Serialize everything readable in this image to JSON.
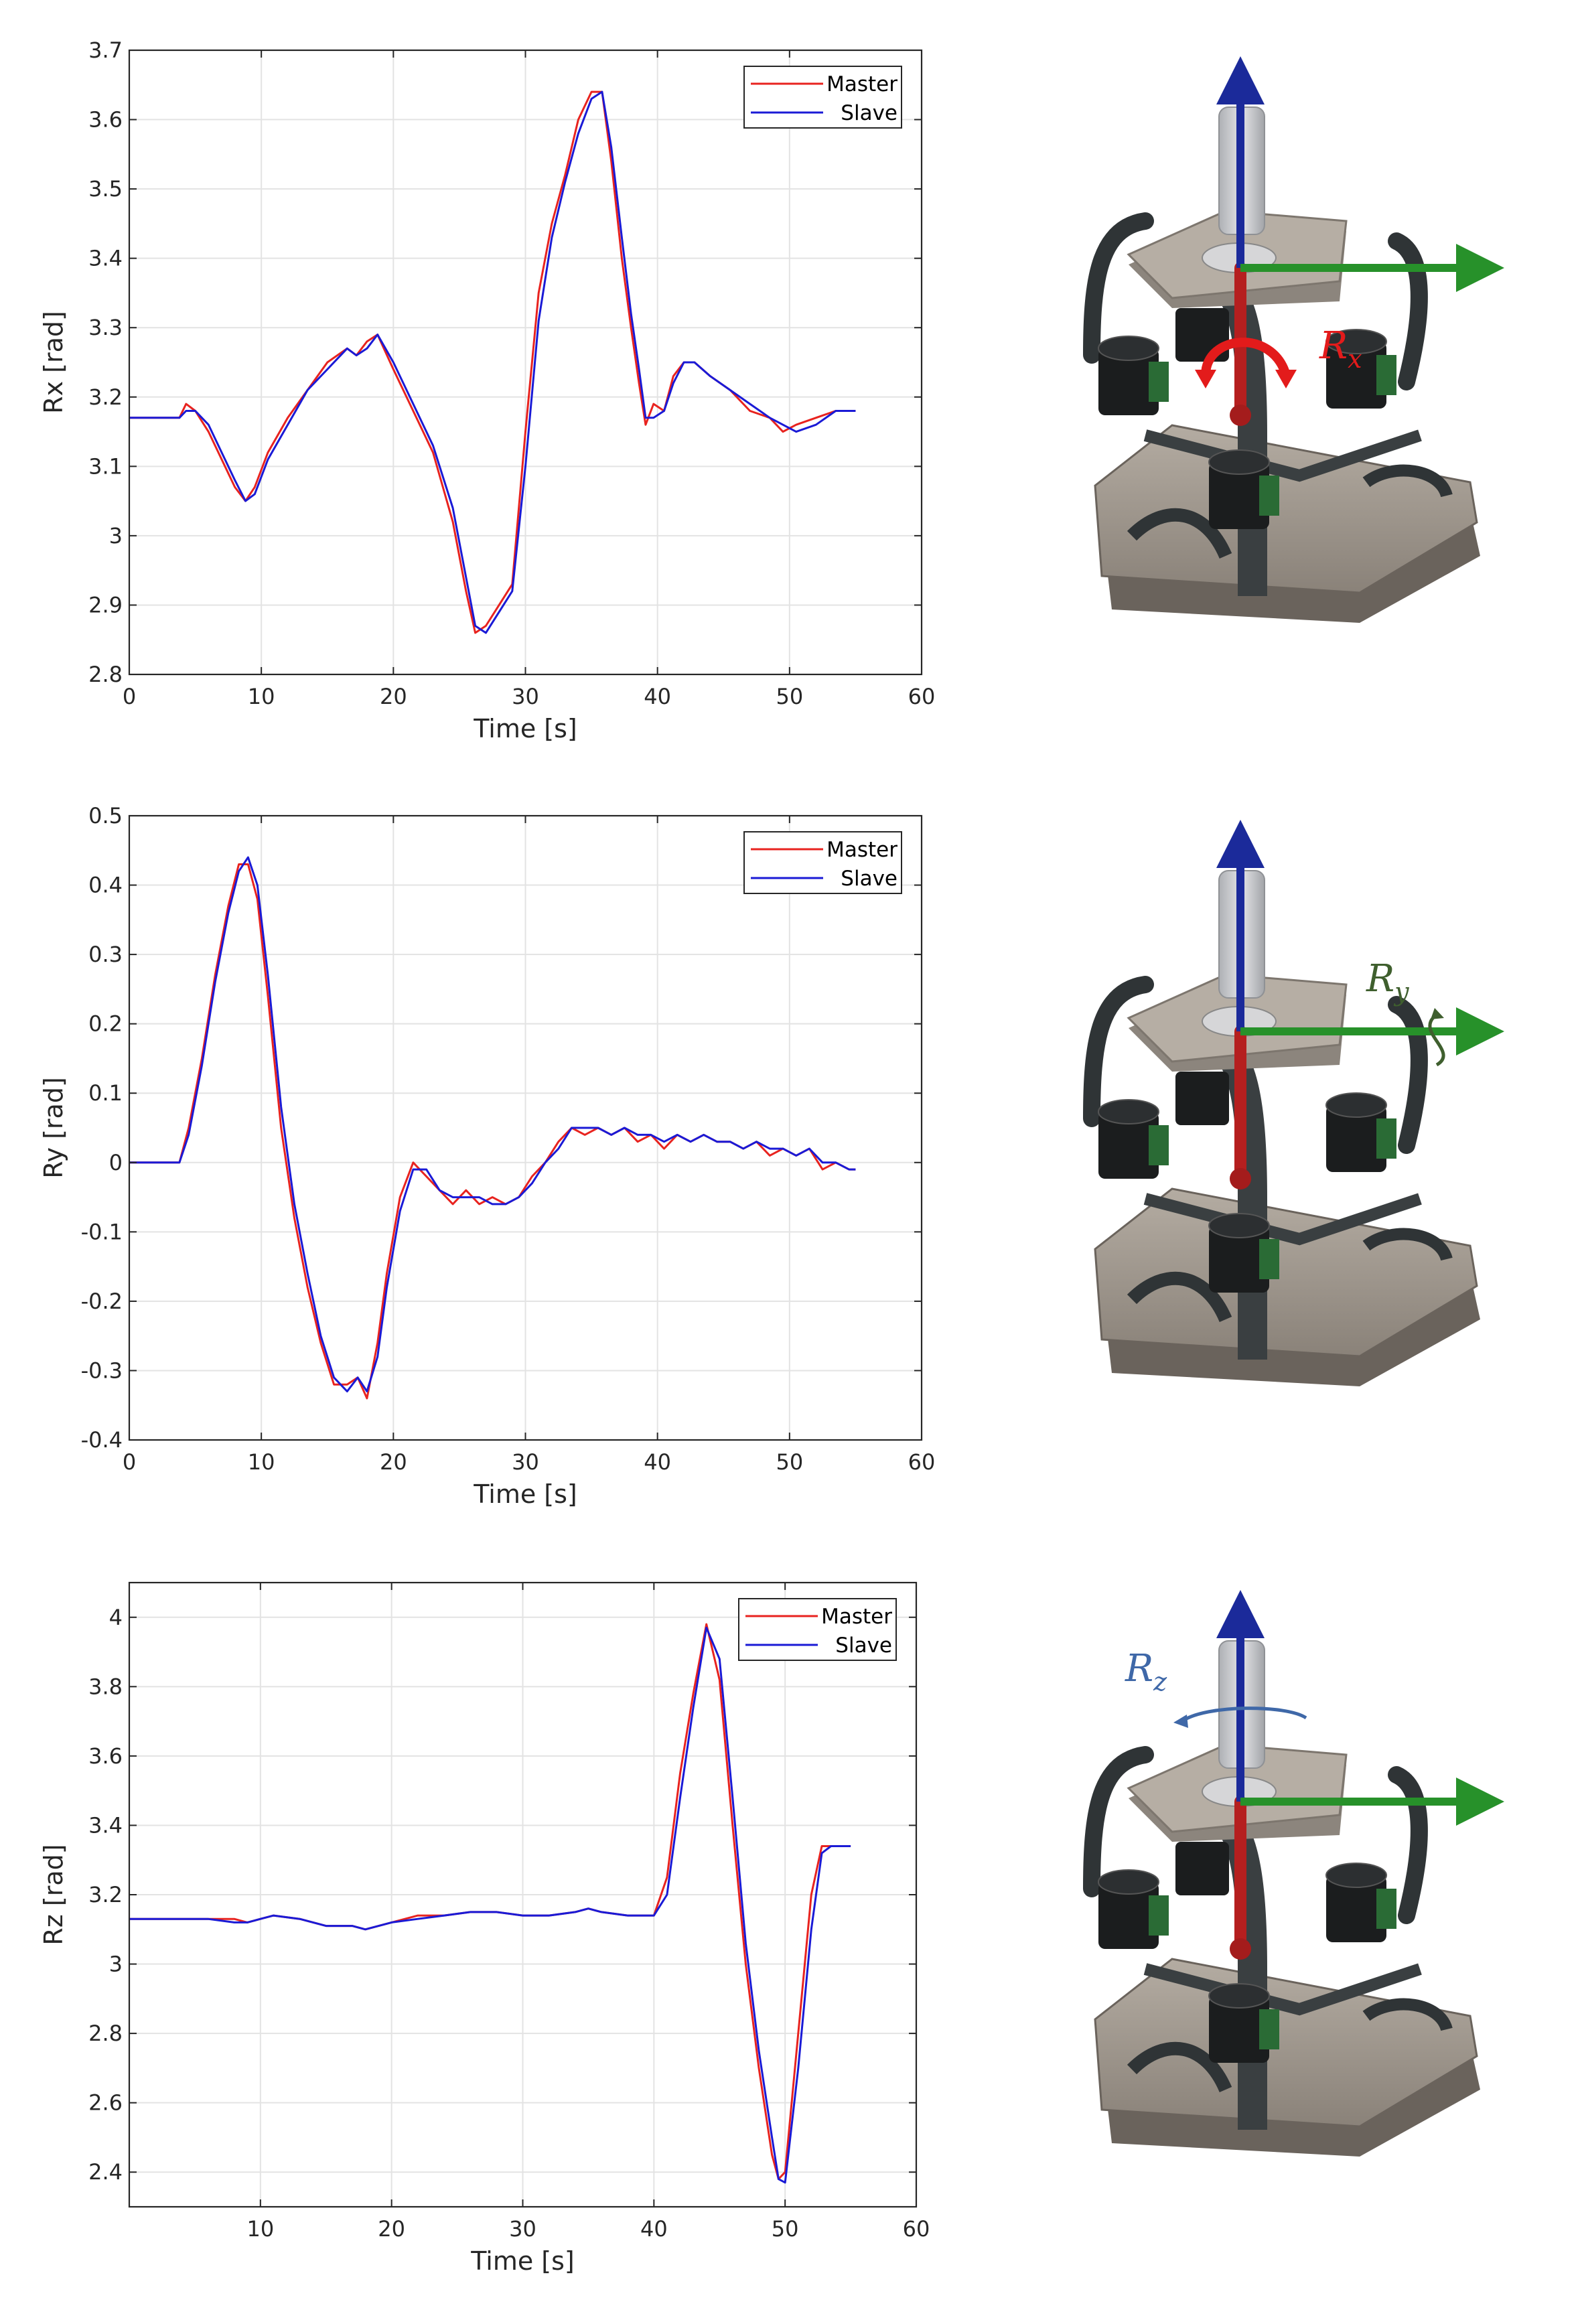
{
  "legend_labels": [
    "Master",
    "Slave"
  ],
  "colors": {
    "master": "#e8231f",
    "slave": "#1a1ad6",
    "x_axis_arrow": "#27912a",
    "z_axis_arrow": "#1b2a9a",
    "y_axis_arrow": "#b51f1f"
  },
  "chart_data": [
    {
      "type": "line",
      "xlabel": "Time [s]",
      "ylabel": "Rx [rad]",
      "xlim": [
        0,
        60
      ],
      "ylim": [
        2.8,
        3.7
      ],
      "xticks": [
        0,
        10,
        20,
        30,
        40,
        50,
        60
      ],
      "yticks": [
        2.8,
        2.9,
        3,
        3.1,
        3.2,
        3.3,
        3.4,
        3.5,
        3.6,
        3.7
      ],
      "grid": true,
      "legend": "top-right",
      "series": [
        {
          "name": "Master",
          "x": [
            0,
            3.8,
            4.3,
            5,
            6,
            7,
            8,
            8.8,
            9.5,
            10.5,
            12,
            13.5,
            15,
            16.5,
            17.2,
            18,
            18.8,
            20,
            21.5,
            23,
            24.5,
            25.5,
            26.2,
            27,
            28,
            29,
            30,
            31,
            32,
            33,
            34,
            35,
            35.8,
            36.5,
            37.3,
            38,
            38.6,
            39.1,
            39.7,
            40.5,
            41.2,
            42,
            42.8,
            44,
            45.5,
            47,
            48.5,
            49.5,
            50.5,
            52,
            53.5,
            55
          ],
          "y": [
            3.17,
            3.17,
            3.19,
            3.18,
            3.15,
            3.11,
            3.07,
            3.05,
            3.07,
            3.12,
            3.17,
            3.21,
            3.25,
            3.27,
            3.26,
            3.28,
            3.29,
            3.24,
            3.18,
            3.12,
            3.02,
            2.92,
            2.86,
            2.87,
            2.9,
            2.93,
            3.15,
            3.35,
            3.45,
            3.52,
            3.6,
            3.64,
            3.64,
            3.54,
            3.4,
            3.3,
            3.22,
            3.16,
            3.19,
            3.18,
            3.23,
            3.25,
            3.25,
            3.23,
            3.21,
            3.18,
            3.17,
            3.15,
            3.16,
            3.17,
            3.18,
            3.18
          ]
        },
        {
          "name": "Slave",
          "x": [
            0,
            3.8,
            4.3,
            5,
            6,
            7,
            8,
            8.8,
            9.5,
            10.5,
            12,
            13.5,
            15,
            16.5,
            17.2,
            18,
            18.8,
            20,
            21.5,
            23,
            24.5,
            25.5,
            26.2,
            27,
            28,
            29,
            30,
            31,
            32,
            33,
            34,
            35,
            35.8,
            36.5,
            37.3,
            38,
            38.6,
            39.1,
            39.7,
            40.5,
            41.2,
            42,
            42.8,
            44,
            45.5,
            47,
            48.5,
            49.5,
            50.5,
            52,
            53.5,
            55
          ],
          "y": [
            3.17,
            3.17,
            3.18,
            3.18,
            3.16,
            3.12,
            3.08,
            3.05,
            3.06,
            3.11,
            3.16,
            3.21,
            3.24,
            3.27,
            3.26,
            3.27,
            3.29,
            3.25,
            3.19,
            3.13,
            3.04,
            2.94,
            2.87,
            2.86,
            2.89,
            2.92,
            3.1,
            3.31,
            3.43,
            3.51,
            3.58,
            3.63,
            3.64,
            3.56,
            3.43,
            3.32,
            3.24,
            3.17,
            3.17,
            3.18,
            3.22,
            3.25,
            3.25,
            3.23,
            3.21,
            3.19,
            3.17,
            3.16,
            3.15,
            3.16,
            3.18,
            3.18
          ]
        }
      ]
    },
    {
      "type": "line",
      "xlabel": "Time [s]",
      "ylabel": "Ry [rad]",
      "xlim": [
        0,
        60
      ],
      "ylim": [
        -0.4,
        0.5
      ],
      "xticks": [
        0,
        10,
        20,
        30,
        40,
        50,
        60
      ],
      "yticks": [
        -0.4,
        -0.3,
        -0.2,
        -0.1,
        0,
        0.1,
        0.2,
        0.3,
        0.4,
        0.5
      ],
      "grid": true,
      "legend": "top-right",
      "series": [
        {
          "name": "Master",
          "x": [
            0,
            3.8,
            4.5,
            5.5,
            6.5,
            7.5,
            8.3,
            9,
            9.7,
            10.5,
            11.5,
            12.5,
            13.5,
            14.5,
            15.5,
            16.5,
            17.3,
            18,
            18.8,
            19.5,
            20.5,
            21.5,
            22.5,
            23.5,
            24.5,
            25.5,
            26.5,
            27.5,
            28.5,
            29.5,
            30.5,
            31.5,
            32.5,
            33.5,
            34.5,
            35.5,
            36.5,
            37.5,
            38.5,
            39.5,
            40.5,
            41.5,
            42.5,
            43.5,
            44.5,
            45.5,
            46.5,
            47.5,
            48.5,
            49.5,
            50.5,
            51.5,
            52.5,
            53.5,
            54.5,
            55
          ],
          "y": [
            0,
            0,
            0.05,
            0.15,
            0.27,
            0.37,
            0.43,
            0.43,
            0.38,
            0.24,
            0.05,
            -0.08,
            -0.18,
            -0.26,
            -0.32,
            -0.32,
            -0.31,
            -0.34,
            -0.26,
            -0.16,
            -0.05,
            0,
            -0.02,
            -0.04,
            -0.06,
            -0.04,
            -0.06,
            -0.05,
            -0.06,
            -0.05,
            -0.02,
            0,
            0.03,
            0.05,
            0.04,
            0.05,
            0.04,
            0.05,
            0.03,
            0.04,
            0.02,
            0.04,
            0.03,
            0.04,
            0.03,
            0.03,
            0.02,
            0.03,
            0.01,
            0.02,
            0.01,
            0.02,
            -0.01,
            0,
            -0.01,
            -0.01
          ]
        },
        {
          "name": "Slave",
          "x": [
            0,
            3.8,
            4.5,
            5.5,
            6.5,
            7.5,
            8.3,
            9,
            9.7,
            10.5,
            11.5,
            12.5,
            13.5,
            14.5,
            15.5,
            16.5,
            17.3,
            18,
            18.8,
            19.5,
            20.5,
            21.5,
            22.5,
            23.5,
            24.5,
            25.5,
            26.5,
            27.5,
            28.5,
            29.5,
            30.5,
            31.5,
            32.5,
            33.5,
            34.5,
            35.5,
            36.5,
            37.5,
            38.5,
            39.5,
            40.5,
            41.5,
            42.5,
            43.5,
            44.5,
            45.5,
            46.5,
            47.5,
            48.5,
            49.5,
            50.5,
            51.5,
            52.5,
            53.5,
            54.5,
            55
          ],
          "y": [
            0,
            0,
            0.04,
            0.14,
            0.26,
            0.36,
            0.42,
            0.44,
            0.4,
            0.27,
            0.08,
            -0.06,
            -0.16,
            -0.25,
            -0.31,
            -0.33,
            -0.31,
            -0.33,
            -0.28,
            -0.18,
            -0.07,
            -0.01,
            -0.01,
            -0.04,
            -0.05,
            -0.05,
            -0.05,
            -0.06,
            -0.06,
            -0.05,
            -0.03,
            0,
            0.02,
            0.05,
            0.05,
            0.05,
            0.04,
            0.05,
            0.04,
            0.04,
            0.03,
            0.04,
            0.03,
            0.04,
            0.03,
            0.03,
            0.02,
            0.03,
            0.02,
            0.02,
            0.01,
            0.02,
            0,
            0,
            -0.01,
            -0.01
          ]
        }
      ]
    },
    {
      "type": "line",
      "xlabel": "Time [s]",
      "ylabel": "Rz [rad]",
      "xlim": [
        0,
        60
      ],
      "ylim": [
        2.3,
        4.1
      ],
      "xticks": [
        10,
        20,
        30,
        40,
        50,
        60
      ],
      "yticks": [
        2.4,
        2.6,
        2.8,
        3,
        3.2,
        3.4,
        3.6,
        3.8,
        4
      ],
      "grid": true,
      "legend": "top-right",
      "series": [
        {
          "name": "Master",
          "x": [
            0,
            4,
            6,
            8,
            9,
            10,
            11,
            13,
            15,
            17,
            18,
            20,
            22,
            24,
            26,
            28,
            30,
            32,
            34,
            35,
            36,
            38,
            40,
            41,
            42,
            43,
            44,
            45,
            46,
            47,
            48,
            49,
            49.5,
            50,
            51,
            52,
            52.8,
            53.5,
            55
          ],
          "y": [
            3.13,
            3.13,
            3.13,
            3.13,
            3.12,
            3.13,
            3.14,
            3.13,
            3.11,
            3.11,
            3.1,
            3.12,
            3.14,
            3.14,
            3.15,
            3.15,
            3.14,
            3.14,
            3.15,
            3.16,
            3.15,
            3.14,
            3.14,
            3.25,
            3.55,
            3.78,
            3.98,
            3.82,
            3.4,
            3.0,
            2.7,
            2.45,
            2.38,
            2.4,
            2.8,
            3.2,
            3.34,
            3.34,
            3.34
          ]
        },
        {
          "name": "Slave",
          "x": [
            0,
            4,
            6,
            8,
            9,
            10,
            11,
            13,
            15,
            17,
            18,
            20,
            22,
            24,
            26,
            28,
            30,
            32,
            34,
            35,
            36,
            38,
            40,
            41,
            42,
            43,
            44,
            45,
            46,
            47,
            48,
            49,
            49.5,
            50,
            51,
            52,
            52.8,
            53.5,
            55
          ],
          "y": [
            3.13,
            3.13,
            3.13,
            3.12,
            3.12,
            3.13,
            3.14,
            3.13,
            3.11,
            3.11,
            3.1,
            3.12,
            3.13,
            3.14,
            3.15,
            3.15,
            3.14,
            3.14,
            3.15,
            3.16,
            3.15,
            3.14,
            3.14,
            3.2,
            3.48,
            3.74,
            3.97,
            3.88,
            3.48,
            3.06,
            2.75,
            2.5,
            2.38,
            2.37,
            2.7,
            3.1,
            3.32,
            3.34,
            3.34
          ]
        }
      ]
    }
  ],
  "robot_labels": [
    {
      "letter": "R",
      "sub": "x"
    },
    {
      "letter": "R",
      "sub": "y"
    },
    {
      "letter": "R",
      "sub": "z"
    }
  ]
}
